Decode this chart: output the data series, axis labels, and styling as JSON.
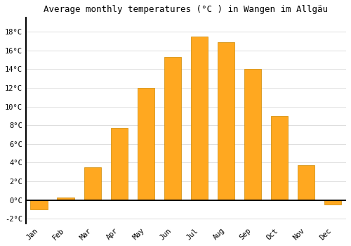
{
  "months": [
    "Jan",
    "Feb",
    "Mar",
    "Apr",
    "May",
    "Jun",
    "Jul",
    "Aug",
    "Sep",
    "Oct",
    "Nov",
    "Dec"
  ],
  "temperatures": [
    -1.0,
    0.3,
    3.5,
    7.7,
    12.0,
    15.3,
    17.5,
    16.9,
    14.0,
    9.0,
    3.7,
    -0.5
  ],
  "bar_color": "#FFA820",
  "bar_edge_color": "#CC8800",
  "title": "Average monthly temperatures (°C ) in Wangen im Allgäu",
  "title_fontsize": 9,
  "ylim": [
    -2.5,
    19.5
  ],
  "yticks": [
    -2,
    0,
    2,
    4,
    6,
    8,
    10,
    12,
    14,
    16,
    18
  ],
  "background_color": "#ffffff",
  "grid_color": "#dddddd",
  "font_family": "monospace",
  "tick_fontsize": 7.5,
  "xlabel_rotation": 45
}
